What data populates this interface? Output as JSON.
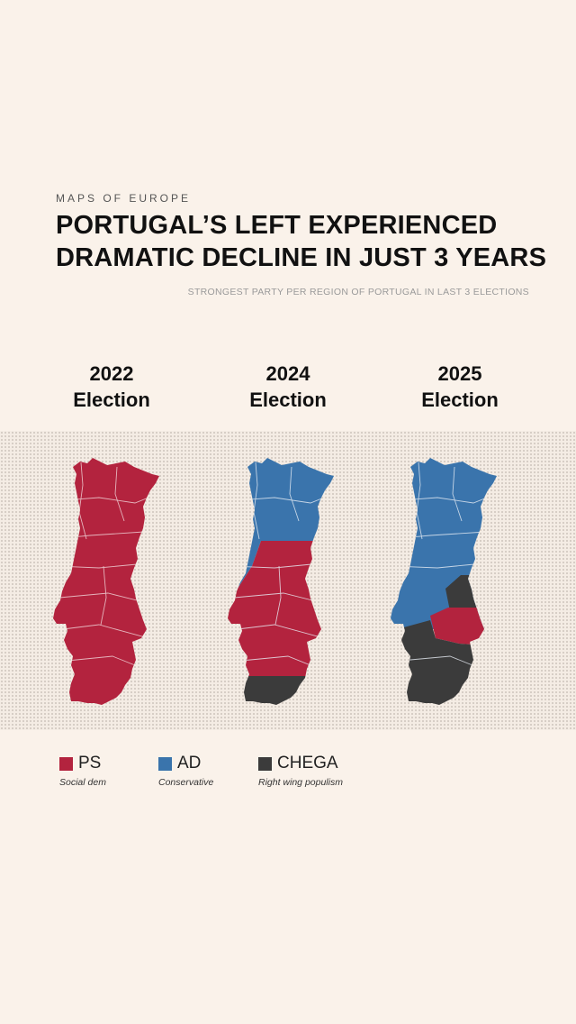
{
  "header": {
    "kicker": "MAPS OF EUROPE",
    "title_line1": "PORTUGAL’S LEFT EXPERIENCED",
    "title_line2": "DRAMATIC DECLINE IN JUST 3 YEARS",
    "subtitle": "STRONGEST PARTY PER REGION OF PORTUGAL IN LAST 3 ELECTIONS"
  },
  "maps": [
    {
      "year": "2022",
      "label": "Election",
      "bands": [
        "PS"
      ]
    },
    {
      "year": "2024",
      "label": "Election",
      "bands": [
        "AD",
        "PS",
        "CHEGA"
      ]
    },
    {
      "year": "2025",
      "label": "Election",
      "bands": [
        "AD",
        "CHEGA",
        "PS",
        "CHEGA"
      ]
    }
  ],
  "legend": [
    {
      "party": "PS",
      "description": "Social dem",
      "color": "#b3233e"
    },
    {
      "party": "AD",
      "description": "Conservative",
      "color": "#3a74ac"
    },
    {
      "party": "CHEGA",
      "description": "Right wing populism",
      "color": "#3b3b3b"
    }
  ]
}
